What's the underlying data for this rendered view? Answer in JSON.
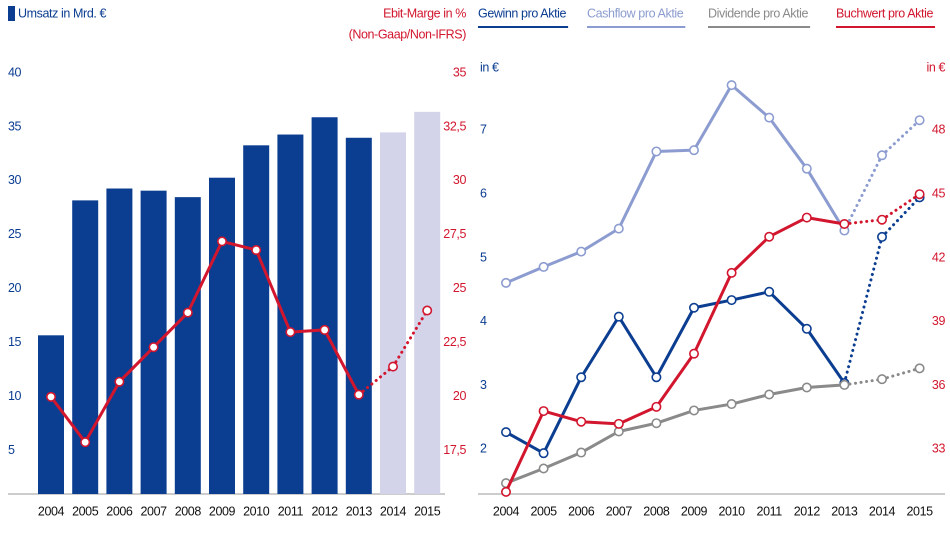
{
  "chart_data": [
    {
      "type": "bar",
      "annotation": "(Non-Gaap/Non-IFRS)",
      "categories": [
        "2004",
        "2005",
        "2006",
        "2007",
        "2008",
        "2009",
        "2010",
        "2011",
        "2012",
        "2013",
        "2014",
        "2015"
      ],
      "forecast": [
        false,
        false,
        false,
        false,
        false,
        false,
        false,
        false,
        false,
        false,
        true,
        true
      ],
      "forecast_color": "#d3d3ea",
      "series": [
        {
          "name": "Umsatz in Mrd. €",
          "type": "bar",
          "color": "#0b3d91",
          "values": [
            15.7,
            28.2,
            29.3,
            29.1,
            28.5,
            30.3,
            33.3,
            34.3,
            35.9,
            34.0,
            34.5,
            36.4
          ]
        },
        {
          "name": "Ebit-Marge in %",
          "type": "line",
          "axis": "y2",
          "color": "#d2162e",
          "values": [
            20.0,
            17.9,
            20.7,
            22.3,
            23.9,
            27.2,
            26.8,
            23.0,
            23.1,
            20.1,
            21.4,
            24.0
          ]
        }
      ],
      "ylim": [
        1,
        40
      ],
      "yticks": [
        5,
        10,
        15,
        20,
        25,
        30,
        35,
        40
      ],
      "y2lim": [
        15.5,
        35
      ],
      "y2ticks": [
        {
          "value": 17.5,
          "label": "17,5"
        },
        20,
        {
          "value": 22.5,
          "label": "22,5"
        },
        25,
        {
          "value": 27.5,
          "label": "27,5"
        },
        30,
        {
          "value": 32.5,
          "label": "32,5"
        },
        35
      ]
    },
    {
      "type": "line",
      "ylabel": "in €",
      "y2label": "in €",
      "categories": [
        "2004",
        "2005",
        "2006",
        "2007",
        "2008",
        "2009",
        "2010",
        "2011",
        "2012",
        "2013",
        "2014",
        "2015"
      ],
      "forecast": [
        false,
        false,
        false,
        false,
        false,
        false,
        false,
        false,
        false,
        false,
        true,
        true
      ],
      "series": [
        {
          "name": "Gewinn pro Aktie",
          "color": "#0b3d91",
          "values": [
            2.27,
            1.94,
            3.13,
            4.08,
            3.13,
            4.22,
            4.34,
            4.47,
            3.89,
            3.04,
            5.33,
            5.95
          ]
        },
        {
          "name": "Cashflow pro Aktie",
          "color": "#8c9cd0",
          "values": [
            4.61,
            4.86,
            5.1,
            5.46,
            6.67,
            6.69,
            7.71,
            7.2,
            6.4,
            5.43,
            6.61,
            7.16
          ]
        },
        {
          "name": "Dividende pro Aktie",
          "color": "#8a8a8a",
          "values": [
            1.47,
            1.7,
            1.95,
            2.28,
            2.41,
            2.61,
            2.71,
            2.86,
            2.97,
            3.01,
            3.1,
            3.27
          ]
        },
        {
          "name": "Buchwert pro Aktie",
          "color": "#d2162e",
          "axis": "y2",
          "values": [
            31.0,
            34.8,
            34.3,
            34.2,
            35.0,
            37.5,
            41.3,
            43.0,
            43.9,
            43.6,
            43.8,
            45.0
          ]
        }
      ],
      "ylim": [
        1.3,
        7.9
      ],
      "yticks": [
        2,
        3,
        4,
        5,
        6,
        7
      ],
      "y2lim": [
        30.9,
        50.7
      ],
      "y2ticks": [
        33,
        36,
        39,
        42,
        45,
        48
      ]
    }
  ]
}
